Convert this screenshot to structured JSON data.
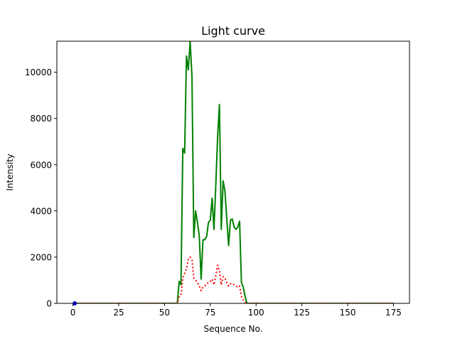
{
  "chart_data": {
    "type": "line",
    "title": "Light curve",
    "xlabel": "Sequence No.",
    "ylabel": "Intensity",
    "xlim": [
      -8.75,
      183.75
    ],
    "ylim": [
      0,
      11340
    ],
    "xticks": [
      0,
      25,
      50,
      75,
      100,
      125,
      150,
      175
    ],
    "xtick_labels": [
      "0",
      "25",
      "50",
      "75",
      "100",
      "125",
      "150",
      "175"
    ],
    "yticks": [
      0,
      2000,
      4000,
      6000,
      8000,
      10000
    ],
    "ytick_labels": [
      "0",
      "2000",
      "4000",
      "6000",
      "8000",
      "10000"
    ],
    "grid": false,
    "series": [
      {
        "color": "#008000",
        "style": "solid",
        "x": [
          0,
          57,
          58,
          59,
          60,
          61,
          62,
          63,
          64,
          65,
          66,
          67,
          68,
          69,
          70,
          71,
          72,
          73,
          74,
          75,
          76,
          77,
          78,
          79,
          80,
          81,
          82,
          83,
          84,
          85,
          86,
          87,
          88,
          89,
          90,
          91,
          92,
          93,
          94,
          95,
          96,
          97,
          98,
          175
        ],
        "y": [
          0,
          0,
          950,
          800,
          6700,
          6500,
          10700,
          10100,
          11340,
          9800,
          2850,
          4000,
          3500,
          2900,
          1050,
          2750,
          2750,
          2900,
          3500,
          3600,
          4550,
          3200,
          5100,
          7200,
          8600,
          3200,
          5300,
          4850,
          3650,
          2500,
          3600,
          3650,
          3300,
          3200,
          3300,
          3550,
          900,
          700,
          300,
          0,
          0,
          0,
          0,
          0
        ]
      },
      {
        "color": "#ff0000",
        "style": "dotted",
        "x": [
          0,
          57,
          58,
          59,
          60,
          61,
          62,
          63,
          64,
          65,
          66,
          67,
          68,
          69,
          70,
          71,
          72,
          73,
          74,
          75,
          76,
          77,
          78,
          79,
          80,
          81,
          82,
          83,
          84,
          85,
          86,
          87,
          88,
          89,
          90,
          91,
          92,
          93,
          94,
          95,
          96,
          97,
          98,
          175
        ],
        "y": [
          0,
          0,
          300,
          400,
          1100,
          1300,
          1500,
          1900,
          2000,
          1900,
          1100,
          1000,
          900,
          750,
          550,
          700,
          750,
          850,
          900,
          950,
          1050,
          800,
          1200,
          1650,
          1400,
          800,
          1150,
          1100,
          900,
          750,
          850,
          850,
          800,
          750,
          700,
          750,
          300,
          150,
          50,
          0,
          0,
          0,
          0,
          0
        ]
      },
      {
        "color": "#0000ff",
        "style": "marker",
        "x": [
          1
        ],
        "y": [
          0
        ]
      }
    ]
  }
}
